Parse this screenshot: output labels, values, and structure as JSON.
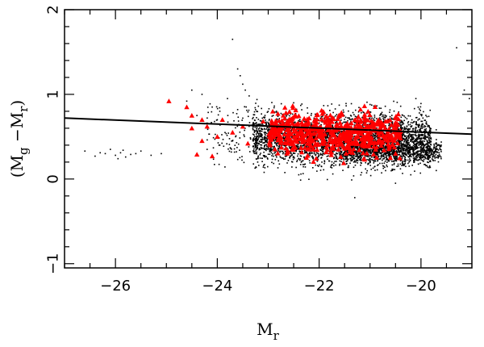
{
  "chart_data": {
    "type": "scatter",
    "title": "",
    "xlabel": {
      "base": "M",
      "sub": "r"
    },
    "ylabel": {
      "open": "(M",
      "sub1": "g",
      "minus": " −M",
      "sub2": "r",
      "close": ")"
    },
    "xlim": [
      -27,
      -19
    ],
    "ylim": [
      -1.05,
      2
    ],
    "x_ticks": [
      -26,
      -24,
      -22,
      -20
    ],
    "x_tick_labels": [
      "−26",
      "−24",
      "−22",
      "−20"
    ],
    "y_ticks": [
      -1,
      0,
      1,
      2
    ],
    "y_tick_labels": [
      "−1",
      "0",
      "1",
      "2"
    ],
    "grid": false,
    "legend": "none",
    "colors": {
      "background": "#ffffff",
      "axes": "#000000",
      "black_points": "#000000",
      "red_points": "#ff0000",
      "fit_line": "#000000"
    },
    "fit_line": {
      "x": [
        -27,
        -19
      ],
      "y": [
        0.72,
        0.53
      ]
    },
    "series": [
      {
        "marker": "dot",
        "color": "#000000",
        "clusters": [
          {
            "x_range": [
              -23.3,
              -19.8
            ],
            "y_mean": 0.48,
            "y_sd": 0.15,
            "count": 3200
          },
          {
            "x_range": [
              -21.6,
              -19.6
            ],
            "y_mean": 0.32,
            "y_sd": 0.07,
            "count": 900
          },
          {
            "x_range": [
              -24.2,
              -23.2
            ],
            "y_mean": 0.55,
            "y_sd": 0.18,
            "count": 110
          }
        ],
        "points": [
          [
            -26.6,
            0.33
          ],
          [
            -26.4,
            0.27
          ],
          [
            -26.2,
            0.3
          ],
          [
            -26.1,
            0.35
          ],
          [
            -26.0,
            0.28
          ],
          [
            -25.9,
            0.31
          ],
          [
            -25.8,
            0.26
          ],
          [
            -25.7,
            0.29
          ],
          [
            -25.6,
            0.3
          ],
          [
            -25.5,
            0.33
          ],
          [
            -25.3,
            0.28
          ],
          [
            -25.1,
            0.3
          ],
          [
            -26.3,
            0.31
          ],
          [
            -25.95,
            0.24
          ],
          [
            -25.85,
            0.34
          ],
          [
            -24.0,
            0.3
          ],
          [
            -24.2,
            0.35
          ],
          [
            -23.95,
            0.4
          ],
          [
            -23.7,
            0.45
          ],
          [
            -24.5,
            1.05
          ],
          [
            -24.3,
            1.0
          ],
          [
            -24.6,
            0.92
          ],
          [
            -24.1,
            0.85
          ],
          [
            -23.95,
            0.8
          ],
          [
            -24.4,
            0.75
          ],
          [
            -23.8,
            0.95
          ],
          [
            -23.6,
            0.82
          ],
          [
            -24.0,
            0.7
          ],
          [
            -24.2,
            0.66
          ],
          [
            -23.7,
            1.65
          ],
          [
            -23.6,
            1.3
          ],
          [
            -23.55,
            1.22
          ],
          [
            -23.5,
            1.12
          ],
          [
            -23.45,
            1.05
          ],
          [
            -19.3,
            1.55
          ],
          [
            -19.1,
            1.4
          ],
          [
            -19.0,
            1.2
          ],
          [
            -19.15,
            1.05
          ],
          [
            -19.05,
            0.95
          ],
          [
            -21.3,
            -0.22
          ],
          [
            -20.2,
            0.05
          ],
          [
            -20.5,
            -0.05
          ],
          [
            -19.7,
            0.1
          ],
          [
            -22.4,
            0.05
          ],
          [
            -20.1,
            0.95
          ],
          [
            -21.0,
            0.88
          ],
          [
            -22.5,
            0.9
          ]
        ]
      },
      {
        "marker": "triangle",
        "color": "#ff0000",
        "clusters": [
          {
            "x_range": [
              -23.0,
              -20.4
            ],
            "y_mean": 0.54,
            "y_sd": 0.12,
            "count": 620
          }
        ],
        "points": [
          [
            -24.95,
            0.92
          ],
          [
            -24.6,
            0.85
          ],
          [
            -24.5,
            0.75
          ],
          [
            -24.3,
            0.7
          ],
          [
            -24.5,
            0.6
          ],
          [
            -24.2,
            0.62
          ],
          [
            -24.3,
            0.45
          ],
          [
            -24.1,
            0.27
          ],
          [
            -24.4,
            0.29
          ],
          [
            -23.9,
            0.7
          ],
          [
            -23.7,
            0.55
          ],
          [
            -23.5,
            0.62
          ],
          [
            -23.4,
            0.42
          ],
          [
            -23.1,
            0.68
          ],
          [
            -24.0,
            0.5
          ],
          [
            -20.5,
            0.72
          ],
          [
            -20.55,
            0.4
          ],
          [
            -20.5,
            0.3
          ],
          [
            -20.6,
            0.25
          ]
        ]
      }
    ]
  }
}
